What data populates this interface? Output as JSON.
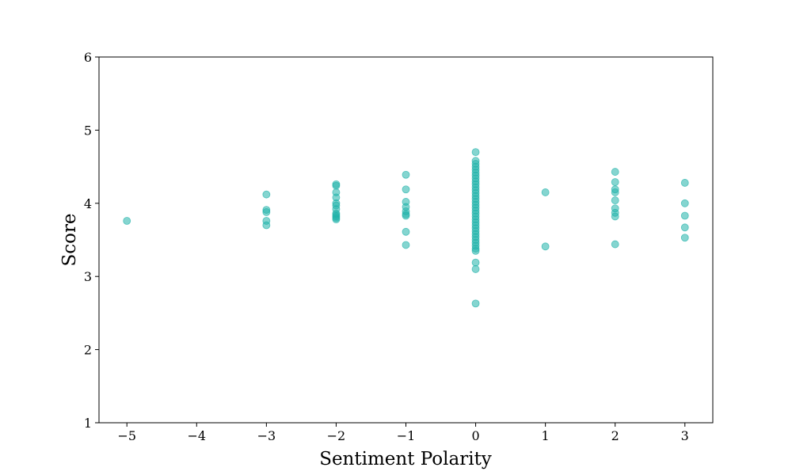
{
  "chart_data": {
    "type": "scatter",
    "title": "",
    "xlabel": "Sentiment Polarity",
    "ylabel": "Score",
    "xlim": [
      -5.4,
      3.4
    ],
    "ylim": [
      1,
      6
    ],
    "xticks": [
      -5,
      -4,
      -3,
      -2,
      -1,
      0,
      1,
      2,
      3
    ],
    "yticks": [
      1,
      2,
      3,
      4,
      5,
      6
    ],
    "grid": false,
    "marker_color": "#20b2aa",
    "points": [
      {
        "x": -5,
        "y": 3.76
      },
      {
        "x": -3,
        "y": 4.12
      },
      {
        "x": -3,
        "y": 3.91
      },
      {
        "x": -3,
        "y": 3.88
      },
      {
        "x": -3,
        "y": 3.76
      },
      {
        "x": -3,
        "y": 3.7
      },
      {
        "x": -2,
        "y": 4.26
      },
      {
        "x": -2,
        "y": 4.24
      },
      {
        "x": -2,
        "y": 4.15
      },
      {
        "x": -2,
        "y": 4.08
      },
      {
        "x": -2,
        "y": 4.0
      },
      {
        "x": -2,
        "y": 3.97
      },
      {
        "x": -2,
        "y": 3.92
      },
      {
        "x": -2,
        "y": 3.86
      },
      {
        "x": -2,
        "y": 3.84
      },
      {
        "x": -2,
        "y": 3.82
      },
      {
        "x": -2,
        "y": 3.8
      },
      {
        "x": -2,
        "y": 3.78
      },
      {
        "x": -1,
        "y": 4.39
      },
      {
        "x": -1,
        "y": 4.19
      },
      {
        "x": -1,
        "y": 4.02
      },
      {
        "x": -1,
        "y": 3.95
      },
      {
        "x": -1,
        "y": 3.89
      },
      {
        "x": -1,
        "y": 3.85
      },
      {
        "x": -1,
        "y": 3.83
      },
      {
        "x": -1,
        "y": 3.61
      },
      {
        "x": -1,
        "y": 3.43
      },
      {
        "x": 0,
        "y": 4.7
      },
      {
        "x": 0,
        "y": 4.58
      },
      {
        "x": 0,
        "y": 4.54
      },
      {
        "x": 0,
        "y": 4.5
      },
      {
        "x": 0,
        "y": 4.46
      },
      {
        "x": 0,
        "y": 4.42
      },
      {
        "x": 0,
        "y": 4.38
      },
      {
        "x": 0,
        "y": 4.34
      },
      {
        "x": 0,
        "y": 4.3
      },
      {
        "x": 0,
        "y": 4.26
      },
      {
        "x": 0,
        "y": 4.22
      },
      {
        "x": 0,
        "y": 4.18
      },
      {
        "x": 0,
        "y": 4.14
      },
      {
        "x": 0,
        "y": 4.1
      },
      {
        "x": 0,
        "y": 4.06
      },
      {
        "x": 0,
        "y": 4.02
      },
      {
        "x": 0,
        "y": 3.98
      },
      {
        "x": 0,
        "y": 3.94
      },
      {
        "x": 0,
        "y": 3.9
      },
      {
        "x": 0,
        "y": 3.86
      },
      {
        "x": 0,
        "y": 3.82
      },
      {
        "x": 0,
        "y": 3.78
      },
      {
        "x": 0,
        "y": 3.74
      },
      {
        "x": 0,
        "y": 3.7
      },
      {
        "x": 0,
        "y": 3.66
      },
      {
        "x": 0,
        "y": 3.62
      },
      {
        "x": 0,
        "y": 3.58
      },
      {
        "x": 0,
        "y": 3.54
      },
      {
        "x": 0,
        "y": 3.5
      },
      {
        "x": 0,
        "y": 3.46
      },
      {
        "x": 0,
        "y": 3.42
      },
      {
        "x": 0,
        "y": 3.38
      },
      {
        "x": 0,
        "y": 3.35
      },
      {
        "x": 0,
        "y": 3.19
      },
      {
        "x": 0,
        "y": 3.1
      },
      {
        "x": 0,
        "y": 2.63
      },
      {
        "x": 1,
        "y": 4.15
      },
      {
        "x": 1,
        "y": 3.41
      },
      {
        "x": 2,
        "y": 4.43
      },
      {
        "x": 2,
        "y": 4.29
      },
      {
        "x": 2,
        "y": 4.19
      },
      {
        "x": 2,
        "y": 4.15
      },
      {
        "x": 2,
        "y": 4.04
      },
      {
        "x": 2,
        "y": 3.93
      },
      {
        "x": 2,
        "y": 3.87
      },
      {
        "x": 2,
        "y": 3.82
      },
      {
        "x": 2,
        "y": 3.44
      },
      {
        "x": 3,
        "y": 4.28
      },
      {
        "x": 3,
        "y": 4.0
      },
      {
        "x": 3,
        "y": 3.83
      },
      {
        "x": 3,
        "y": 3.67
      },
      {
        "x": 3,
        "y": 3.53
      }
    ]
  }
}
